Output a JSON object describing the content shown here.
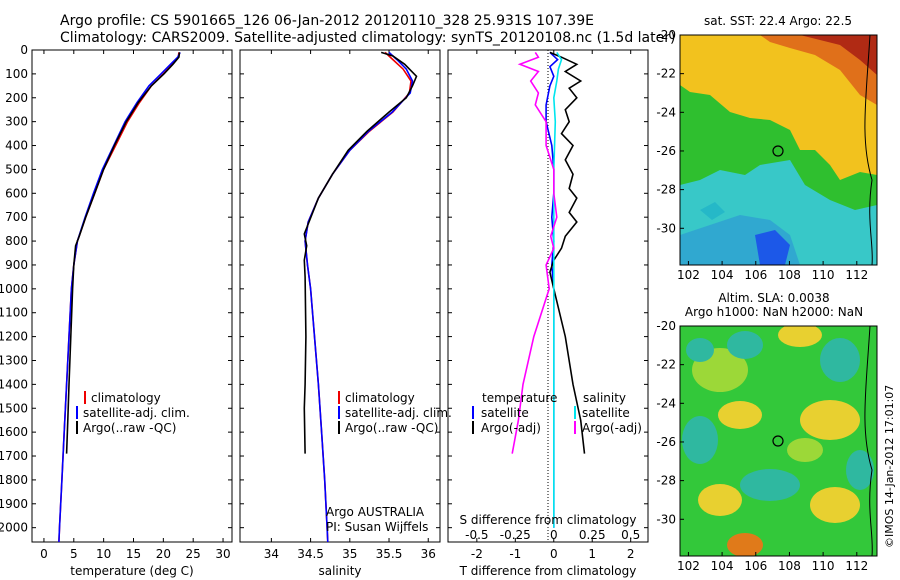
{
  "header": {
    "line1": "Argo profile: CS 5901665_126 06-Jan-2012 20120110_328 25.931S 107.39E",
    "line2": "Climatology: CARS2009. Satellite-adjusted climatology: synTS_20120108.nc (1.5d later)"
  },
  "colors": {
    "climatology": "#ee0000",
    "satellite": "#0000ff",
    "argo": "#000000",
    "salinity_diff": "#ff00ff",
    "salinity_sat": "#00e5ee"
  },
  "chart_data": [
    {
      "type": "line",
      "xlabel": "temperature (deg C)",
      "xlim": [
        -2,
        31.5
      ],
      "ylim": [
        0,
        2060
      ],
      "xticks": [
        0,
        5,
        10,
        15,
        20,
        25,
        30
      ],
      "yticks": [
        0,
        100,
        200,
        300,
        400,
        500,
        600,
        700,
        800,
        900,
        1000,
        1100,
        1200,
        1300,
        1400,
        1500,
        1600,
        1700,
        1800,
        1900,
        2000
      ],
      "legend": [
        "climatology",
        "satellite-adj. clim.",
        "Argo(..raw -QC)"
      ],
      "series": [
        {
          "name": "climatology",
          "points": [
            [
              22.6,
              10
            ],
            [
              22.5,
              30
            ],
            [
              21.5,
              60
            ],
            [
              20,
              100
            ],
            [
              18,
              150
            ],
            [
              16,
              220
            ],
            [
              14,
              300
            ],
            [
              12,
              400
            ],
            [
              10,
              500
            ],
            [
              8.5,
              600
            ],
            [
              7,
              700
            ],
            [
              5.6,
              800
            ],
            [
              5,
              900
            ],
            [
              4.6,
              1000
            ],
            [
              4.2,
              1200
            ],
            [
              3.8,
              1400
            ],
            [
              3.4,
              1600
            ],
            [
              3.0,
              1800
            ],
            [
              2.6,
              2000
            ],
            [
              2.5,
              2060
            ]
          ]
        },
        {
          "name": "satellite-adj. clim.",
          "points": [
            [
              22.8,
              10
            ],
            [
              22.4,
              30
            ],
            [
              21.2,
              60
            ],
            [
              19.6,
              100
            ],
            [
              17.6,
              150
            ],
            [
              15.6,
              220
            ],
            [
              13.6,
              300
            ],
            [
              11.7,
              400
            ],
            [
              9.8,
              500
            ],
            [
              8.3,
              600
            ],
            [
              6.9,
              700
            ],
            [
              5.6,
              800
            ],
            [
              5,
              900
            ],
            [
              4.6,
              1000
            ],
            [
              4.2,
              1200
            ],
            [
              3.8,
              1400
            ],
            [
              3.4,
              1600
            ],
            [
              3.0,
              1800
            ],
            [
              2.6,
              2000
            ],
            [
              2.5,
              2060
            ]
          ]
        },
        {
          "name": "Argo(..raw -QC)",
          "points": [
            [
              22.7,
              10
            ],
            [
              22.6,
              30
            ],
            [
              21.6,
              60
            ],
            [
              20.1,
              100
            ],
            [
              18,
              150
            ],
            [
              15.8,
              220
            ],
            [
              13.8,
              300
            ],
            [
              11.8,
              400
            ],
            [
              10,
              500
            ],
            [
              8.5,
              600
            ],
            [
              7,
              700
            ],
            [
              5.9,
              780
            ],
            [
              5.3,
              820
            ],
            [
              5,
              900
            ],
            [
              4.8,
              1000
            ],
            [
              4.5,
              1200
            ],
            [
              4.2,
              1400
            ],
            [
              4.0,
              1550
            ],
            [
              3.8,
              1690
            ]
          ]
        }
      ]
    },
    {
      "type": "line",
      "xlabel": "salinity",
      "xlim": [
        33.6,
        36.15
      ],
      "ylim": [
        0,
        2060
      ],
      "xticks": [
        34,
        34.5,
        35,
        35.5,
        36
      ],
      "legend": [
        "climatology",
        "satellite-adj. clim.",
        "Argo(..raw -QC)"
      ],
      "annotation": [
        "Argo AUSTRALIA",
        "PI: Susan Wijffels"
      ],
      "series": [
        {
          "name": "climatology",
          "points": [
            [
              35.45,
              10
            ],
            [
              35.55,
              40
            ],
            [
              35.68,
              80
            ],
            [
              35.78,
              130
            ],
            [
              35.76,
              180
            ],
            [
              35.55,
              260
            ],
            [
              35.25,
              340
            ],
            [
              35.0,
              420
            ],
            [
              34.78,
              520
            ],
            [
              34.6,
              620
            ],
            [
              34.47,
              720
            ],
            [
              34.43,
              800
            ],
            [
              34.46,
              900
            ],
            [
              34.5,
              1000
            ],
            [
              34.55,
              1200
            ],
            [
              34.6,
              1400
            ],
            [
              34.64,
              1600
            ],
            [
              34.68,
              1800
            ],
            [
              34.71,
              2000
            ],
            [
              34.72,
              2060
            ]
          ]
        },
        {
          "name": "satellite-adj. clim.",
          "points": [
            [
              35.5,
              10
            ],
            [
              35.6,
              40
            ],
            [
              35.72,
              80
            ],
            [
              35.8,
              130
            ],
            [
              35.77,
              180
            ],
            [
              35.54,
              260
            ],
            [
              35.24,
              340
            ],
            [
              35.0,
              420
            ],
            [
              34.78,
              520
            ],
            [
              34.6,
              620
            ],
            [
              34.47,
              720
            ],
            [
              34.43,
              800
            ],
            [
              34.46,
              900
            ],
            [
              34.5,
              1000
            ],
            [
              34.55,
              1200
            ],
            [
              34.6,
              1400
            ],
            [
              34.64,
              1600
            ],
            [
              34.68,
              1800
            ],
            [
              34.71,
              2000
            ],
            [
              34.72,
              2060
            ]
          ]
        },
        {
          "name": "Argo(..raw -QC)",
          "points": [
            [
              35.4,
              10
            ],
            [
              35.55,
              25
            ],
            [
              35.7,
              60
            ],
            [
              35.85,
              110
            ],
            [
              35.8,
              150
            ],
            [
              35.72,
              200
            ],
            [
              35.5,
              260
            ],
            [
              35.22,
              340
            ],
            [
              34.98,
              420
            ],
            [
              34.78,
              520
            ],
            [
              34.6,
              620
            ],
            [
              34.48,
              720
            ],
            [
              34.42,
              770
            ],
            [
              34.45,
              820
            ],
            [
              34.42,
              880
            ],
            [
              34.43,
              950
            ],
            [
              34.44,
              1200
            ],
            [
              34.43,
              1400
            ],
            [
              34.42,
              1500
            ],
            [
              34.43,
              1690
            ]
          ]
        }
      ]
    },
    {
      "type": "line",
      "xlabel": "T difference from climatology",
      "xlabel_top": "S difference from climatology",
      "xlim": [
        -2.75,
        2.45
      ],
      "ylim": [
        0,
        2060
      ],
      "xticks": [
        -2,
        -1,
        0,
        1,
        2
      ],
      "xticks_top": [
        -0.5,
        -0.25,
        0,
        0.25,
        0.5
      ],
      "legend_left": [
        "temperature",
        "satellite",
        "Argo(-adj)"
      ],
      "legend_right": [
        "salinity",
        "satellite",
        "Argo(-adj)"
      ],
      "series": [
        {
          "name": "temperature satellite",
          "points": [
            [
              -0.1,
              10
            ],
            [
              0.1,
              40
            ],
            [
              -0.1,
              70
            ],
            [
              0,
              110
            ],
            [
              -0.1,
              150
            ],
            [
              -0.2,
              230
            ],
            [
              -0.2,
              300
            ],
            [
              -0.05,
              400
            ],
            [
              0,
              500
            ],
            [
              0,
              600
            ],
            [
              -0.05,
              700
            ],
            [
              0,
              800
            ],
            [
              -0.05,
              900
            ],
            [
              0,
              1000
            ],
            [
              0,
              1300
            ],
            [
              0,
              1500
            ],
            [
              0,
              1700
            ],
            [
              0,
              1900
            ],
            [
              0,
              2000
            ]
          ]
        },
        {
          "name": "temperature Argo(-adj)",
          "points": [
            [
              -0.1,
              10
            ],
            [
              0.2,
              30
            ],
            [
              0.6,
              60
            ],
            [
              0.3,
              90
            ],
            [
              0.7,
              130
            ],
            [
              0.4,
              160
            ],
            [
              0.6,
              200
            ],
            [
              0.3,
              250
            ],
            [
              0.4,
              300
            ],
            [
              0.2,
              350
            ],
            [
              0.5,
              400
            ],
            [
              0.3,
              460
            ],
            [
              0.5,
              520
            ],
            [
              0.4,
              580
            ],
            [
              0.6,
              620
            ],
            [
              0.4,
              680
            ],
            [
              0.6,
              720
            ],
            [
              0.3,
              780
            ],
            [
              0.2,
              830
            ],
            [
              0,
              880
            ],
            [
              -0.1,
              930
            ],
            [
              0,
              1000
            ],
            [
              0.3,
              1200
            ],
            [
              0.5,
              1400
            ],
            [
              0.7,
              1550
            ],
            [
              0.8,
              1690
            ]
          ]
        },
        {
          "name": "salinity satellite",
          "points": [
            [
              0.02,
              10
            ],
            [
              0.05,
              40
            ],
            [
              0.03,
              80
            ],
            [
              0.02,
              130
            ],
            [
              0.0,
              200
            ],
            [
              0.01,
              300
            ],
            [
              0.0,
              500
            ],
            [
              0.0,
              700
            ],
            [
              0.0,
              900
            ],
            [
              0.0,
              1200
            ],
            [
              0.0,
              1500
            ],
            [
              0.0,
              1700
            ],
            [
              0.0,
              2000
            ]
          ]
        },
        {
          "name": "salinity Argo(-adj)",
          "points": [
            [
              -0.12,
              10
            ],
            [
              -0.1,
              30
            ],
            [
              -0.22,
              60
            ],
            [
              -0.1,
              90
            ],
            [
              -0.15,
              130
            ],
            [
              -0.1,
              180
            ],
            [
              -0.12,
              230
            ],
            [
              -0.05,
              300
            ],
            [
              -0.05,
              400
            ],
            [
              0.0,
              500
            ],
            [
              0.0,
              600
            ],
            [
              0.02,
              700
            ],
            [
              -0.02,
              780
            ],
            [
              0.0,
              830
            ],
            [
              -0.05,
              900
            ],
            [
              -0.03,
              1000
            ],
            [
              -0.13,
              1200
            ],
            [
              -0.2,
              1400
            ],
            [
              -0.23,
              1550
            ],
            [
              -0.27,
              1690
            ]
          ]
        }
      ]
    }
  ],
  "maps": {
    "sst": {
      "title": "sat. SST: 22.4 Argo: 22.5",
      "ylabels": [
        "-20",
        "-22",
        "-24",
        "-26",
        "-28",
        "-30"
      ],
      "xlabels": [
        "102",
        "104",
        "106",
        "108",
        "110",
        "112"
      ]
    },
    "sla": {
      "title1": "Altim. SLA: 0.0038",
      "title2": "Argo h1000: NaN h2000: NaN",
      "ylabels": [
        "-20",
        "-22",
        "-24",
        "-26",
        "-28",
        "-30"
      ],
      "xlabels": [
        "102",
        "104",
        "106",
        "108",
        "110",
        "112"
      ]
    },
    "lon_range": [
      101.5,
      113.2
    ],
    "lat_range": [
      -20,
      -31.9
    ],
    "argo_position": {
      "lon": 107.39,
      "lat": -25.931
    }
  },
  "credit": "©IMOS 14-Jan-2012 17:01:07"
}
